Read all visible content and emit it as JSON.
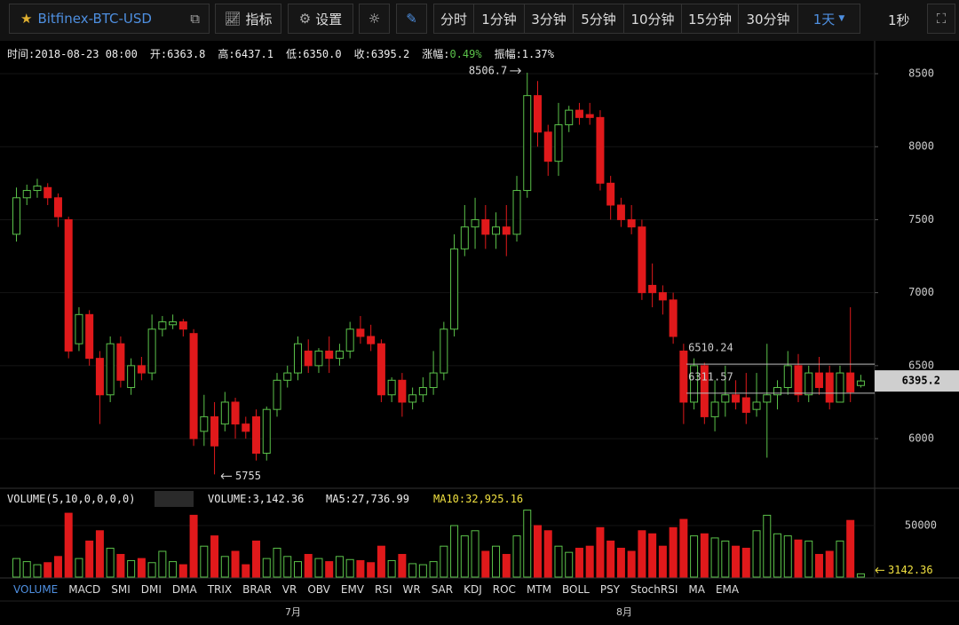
{
  "toolbar": {
    "symbol": "Bitfinex-BTC-USD",
    "indicator": "指标",
    "settings": "设置",
    "intervals": [
      "分时",
      "1分钟",
      "3分钟",
      "5分钟",
      "10分钟",
      "15分钟",
      "30分钟",
      "1天"
    ],
    "timer": "1秒"
  },
  "info": [
    {
      "label": "时间:",
      "value": "2018-08-23 08:00"
    },
    {
      "label": "开:",
      "value": "6363.8"
    },
    {
      "label": "高:",
      "value": "6437.1"
    },
    {
      "label": "低:",
      "value": "6350.0"
    },
    {
      "label": "收:",
      "value": "6395.2"
    },
    {
      "label": "涨幅:",
      "value": "0.49%"
    },
    {
      "label": "振幅:",
      "value": "1.37%"
    }
  ],
  "chart_data": {
    "type": "candlestick",
    "open": [
      7400,
      7650,
      7700,
      7720,
      7650,
      7500,
      6650,
      6850,
      6550,
      6300,
      6650,
      6350,
      6500,
      6450,
      6750,
      6780,
      6800,
      6720,
      6050,
      6150,
      6100,
      6250,
      6100,
      6150,
      5900,
      6200,
      6400,
      6450,
      6600,
      6500,
      6600,
      6550,
      6600,
      6750,
      6700,
      6650,
      6300,
      6400,
      6250,
      6300,
      6350,
      6450,
      6750,
      7300,
      7450,
      7500,
      7400,
      7450,
      7400,
      7700,
      8350,
      8100,
      7900,
      8150,
      8250,
      8220,
      8200,
      7750,
      7600,
      7500,
      7450,
      7050,
      7000,
      6950,
      6600,
      6250,
      6500,
      6150,
      6250,
      6300,
      6280,
      6200,
      6250,
      6300,
      6350,
      6500,
      6300,
      6450,
      6450,
      6250,
      6450,
      6363.8
    ],
    "high": [
      7720,
      7740,
      7780,
      7750,
      7680,
      7520,
      6900,
      6880,
      6600,
      6700,
      6700,
      6550,
      6560,
      6850,
      6840,
      6850,
      6820,
      6750,
      6300,
      6250,
      6320,
      6280,
      6150,
      6200,
      6220,
      6450,
      6500,
      6700,
      6680,
      6620,
      6700,
      6650,
      6800,
      6840,
      6780,
      6680,
      6420,
      6450,
      6350,
      6420,
      6600,
      6800,
      7400,
      7600,
      7650,
      7600,
      7550,
      7600,
      7800,
      8506.7,
      8450,
      8150,
      8300,
      8280,
      8300,
      8300,
      8250,
      7800,
      7650,
      7600,
      7500,
      7200,
      7050,
      7000,
      6650,
      6550,
      6520,
      6400,
      6500,
      6400,
      6450,
      6450,
      6650,
      6400,
      6600,
      6580,
      6500,
      6560,
      6500,
      6500,
      6900,
      6437.1
    ],
    "low": [
      7350,
      7600,
      7650,
      7600,
      7450,
      6550,
      6600,
      6500,
      6100,
      6250,
      6350,
      6300,
      6400,
      6400,
      6700,
      6750,
      6700,
      5950,
      5950,
      5755,
      6050,
      6000,
      6000,
      5850,
      5850,
      6150,
      6350,
      6400,
      6450,
      6450,
      6450,
      6500,
      6550,
      6650,
      6600,
      6250,
      6250,
      6150,
      6200,
      6250,
      6300,
      6400,
      6700,
      7250,
      7300,
      7300,
      7300,
      7250,
      7350,
      7650,
      8000,
      7800,
      7800,
      8100,
      8150,
      8150,
      7700,
      7500,
      7450,
      7400,
      6950,
      6900,
      6850,
      6650,
      6100,
      6200,
      6100,
      6050,
      6150,
      6200,
      6100,
      6150,
      5870,
      6200,
      6300,
      6250,
      6250,
      6300,
      6200,
      6250,
      6250,
      6350
    ],
    "close": [
      7650,
      7700,
      7730,
      7650,
      7520,
      6600,
      6850,
      6550,
      6300,
      6650,
      6400,
      6500,
      6450,
      6750,
      6800,
      6800,
      6750,
      6000,
      6150,
      5950,
      6250,
      6100,
      6050,
      5900,
      6200,
      6400,
      6450,
      6650,
      6500,
      6600,
      6550,
      6600,
      6750,
      6700,
      6650,
      6300,
      6400,
      6250,
      6300,
      6350,
      6450,
      6750,
      7300,
      7450,
      7500,
      7400,
      7450,
      7400,
      7700,
      8350,
      8100,
      7900,
      8150,
      8250,
      8200,
      8200,
      7750,
      7600,
      7500,
      7450,
      7000,
      7000,
      6950,
      6700,
      6250,
      6500,
      6150,
      6250,
      6300,
      6250,
      6180,
      6250,
      6300,
      6350,
      6500,
      6300,
      6450,
      6350,
      6250,
      6450,
      6320,
      6395.2
    ],
    "up_color": "#5bc24a",
    "down_color": "#e0191b",
    "ylim": [
      5672,
      8567
    ],
    "yticks": [
      6000,
      6500,
      7000,
      7500,
      8000,
      8500
    ],
    "levels": [
      6510.24,
      6311.57
    ],
    "x_labels": [
      "7月",
      "8月"
    ]
  },
  "volume": {
    "type": "bar",
    "header": "VOLUME(5,10,0,0,0,0)",
    "current": "VOLUME:3,142.36",
    "ma5": "MA5:27,736.99",
    "ma10": "MA10:32,925.16",
    "values": [
      18000,
      15000,
      12000,
      14000,
      20000,
      62000,
      18000,
      35000,
      45000,
      28000,
      22000,
      16000,
      18000,
      14000,
      25000,
      15000,
      12000,
      60000,
      30000,
      40000,
      20000,
      25000,
      12000,
      35000,
      18000,
      28000,
      20000,
      15000,
      22000,
      18000,
      15000,
      20000,
      17000,
      16000,
      14000,
      30000,
      16000,
      22000,
      13000,
      12000,
      15000,
      30000,
      50000,
      40000,
      45000,
      25000,
      30000,
      22000,
      40000,
      65000,
      50000,
      45000,
      30000,
      24000,
      28000,
      30000,
      48000,
      35000,
      28000,
      25000,
      45000,
      42000,
      30000,
      48000,
      56000,
      40000,
      42000,
      38000,
      35000,
      30000,
      28000,
      45000,
      60000,
      42000,
      40000,
      36000,
      35000,
      22000,
      25000,
      35000,
      55000,
      3142.36
    ],
    "ylim": [
      0,
      84480
    ],
    "yticks": [
      50000
    ]
  },
  "tabs": [
    "VOLUME",
    "MACD",
    "SMI",
    "DMI",
    "DMA",
    "TRIX",
    "BRAR",
    "VR",
    "OBV",
    "EMV",
    "RSI",
    "WR",
    "SAR",
    "KDJ",
    "ROC",
    "MTM",
    "BOLL",
    "PSY",
    "StochRSI",
    "MA",
    "EMA"
  ]
}
